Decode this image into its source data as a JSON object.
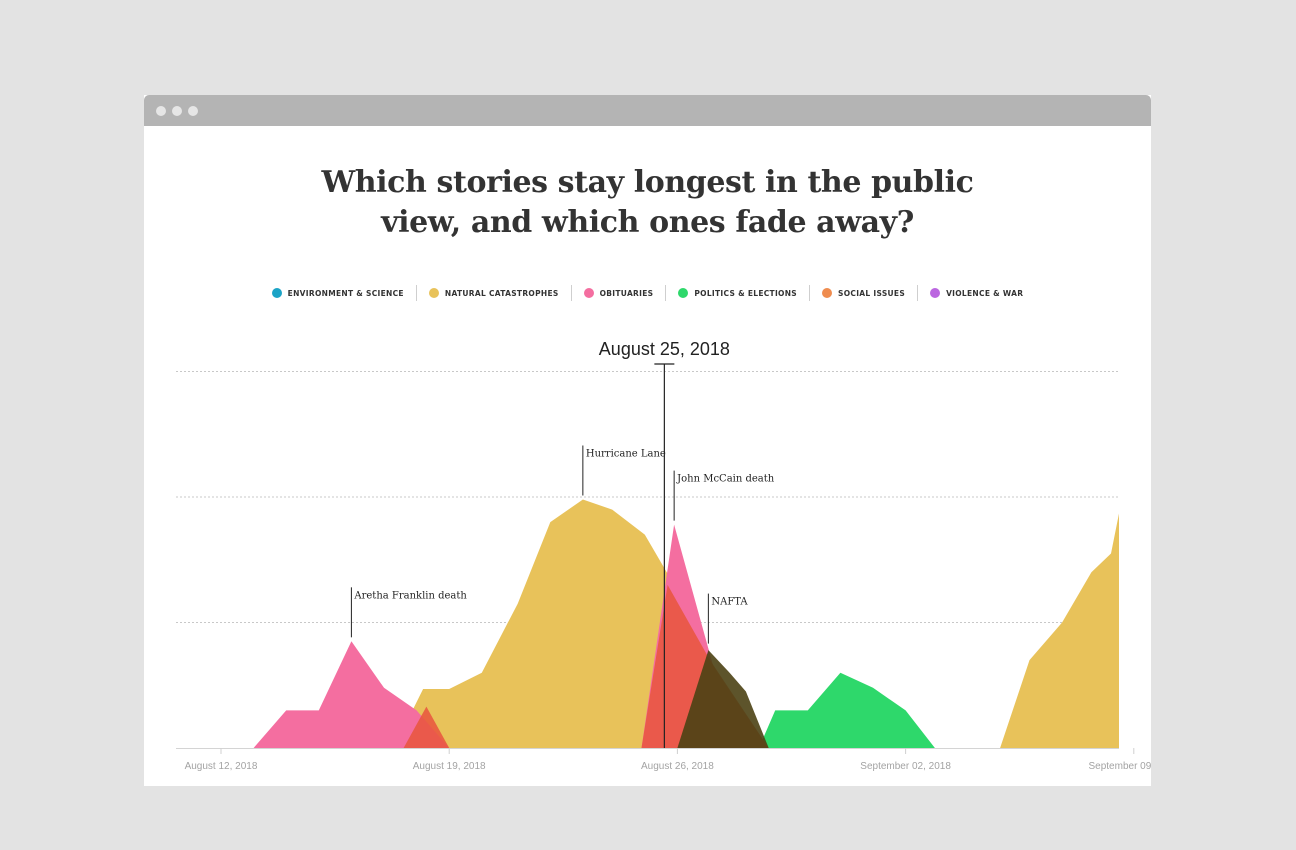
{
  "window": {
    "controls": [
      "close-dot",
      "minimize-dot",
      "maximize-dot"
    ]
  },
  "page": {
    "title_line1": "Which stories stay longest in the public",
    "title_line2": "view, and which ones fade away?"
  },
  "legend": [
    {
      "label": "ENVIRONMENT & SCIENCE",
      "color": "#1ba3c6"
    },
    {
      "label": "NATURAL CATASTROPHES",
      "color": "#e8c25a"
    },
    {
      "label": "OBITUARIES",
      "color": "#f46ea0"
    },
    {
      "label": "POLITICS & ELECTIONS",
      "color": "#2ed86b"
    },
    {
      "label": "SOCIAL ISSUES",
      "color": "#ef8c4f"
    },
    {
      "label": "VIOLENCE & WAR",
      "color": "#bb66e0"
    }
  ],
  "chart_data": {
    "type": "area",
    "cursor_date": "August 25, 2018",
    "x_ticks": [
      {
        "day": 0,
        "label": "August 12, 2018"
      },
      {
        "day": 7,
        "label": "August 19, 2018"
      },
      {
        "day": 14,
        "label": "August 26, 2018"
      },
      {
        "day": 21,
        "label": "September 02, 2018"
      },
      {
        "day": 28,
        "label": "September 09, 2018"
      }
    ],
    "x_range": [
      -1.3,
      27.6
    ],
    "cursor_day": 13.6,
    "ylim": [
      0,
      3
    ],
    "grid_values": [
      1,
      2,
      3
    ],
    "grid": true,
    "series": [
      {
        "color": "#e8c25a",
        "points": [
          [
            5.3,
            0
          ],
          [
            6.2,
            0.47
          ],
          [
            7,
            0.47
          ],
          [
            8,
            0.6
          ],
          [
            9.1,
            1.15
          ],
          [
            10.1,
            1.8
          ],
          [
            11.1,
            1.98
          ],
          [
            12,
            1.9
          ],
          [
            13,
            1.7
          ],
          [
            13.9,
            1.3
          ],
          [
            14.6,
            0.75
          ],
          [
            15.1,
            0.35
          ],
          [
            15.6,
            0
          ]
        ]
      },
      {
        "color": "#e8c25a",
        "points": [
          [
            23.9,
            0
          ],
          [
            24.8,
            0.7
          ],
          [
            25.8,
            1
          ],
          [
            26.7,
            1.4
          ],
          [
            27.3,
            1.55
          ],
          [
            27.8,
            2.2
          ],
          [
            28.2,
            2.35
          ],
          [
            28.2,
            0
          ]
        ]
      },
      {
        "color": "#2ed86b",
        "points": [
          [
            16.5,
            0
          ],
          [
            17,
            0.3
          ],
          [
            18,
            0.3
          ],
          [
            19,
            0.6
          ],
          [
            20,
            0.48
          ],
          [
            21,
            0.3
          ],
          [
            21.9,
            0
          ]
        ]
      },
      {
        "color": "#f46ea0",
        "points": [
          [
            1,
            0
          ],
          [
            2,
            0.3
          ],
          [
            3,
            0.3
          ],
          [
            4,
            0.85
          ],
          [
            5,
            0.48
          ],
          [
            6,
            0.3
          ],
          [
            7,
            0
          ]
        ]
      },
      {
        "color": "#f46ea0",
        "points": [
          [
            12.9,
            0
          ],
          [
            13.9,
            1.78
          ],
          [
            15.1,
            0.65
          ],
          [
            16,
            0.3
          ],
          [
            16.8,
            0
          ]
        ]
      },
      {
        "color": "#e8563f",
        "opacity": 0.88,
        "points": [
          [
            5.6,
            0
          ],
          [
            6.3,
            0.33
          ],
          [
            7,
            0
          ]
        ]
      },
      {
        "color": "#e8563f",
        "opacity": 0.88,
        "points": [
          [
            12.9,
            0
          ],
          [
            13.7,
            1.3
          ],
          [
            15,
            0.7
          ],
          [
            16.8,
            0
          ],
          [
            12.9,
            0
          ]
        ]
      },
      {
        "color": "#4b4114",
        "opacity": 0.9,
        "points": [
          [
            14,
            0
          ],
          [
            14.95,
            0.78
          ],
          [
            15.6,
            0.6
          ],
          [
            16.1,
            0.45
          ],
          [
            16.8,
            0
          ]
        ]
      }
    ],
    "annotations": [
      {
        "label": "Aretha Franklin death",
        "day": 4,
        "value": 0.85
      },
      {
        "label": "Hurricane Lane",
        "day": 11.1,
        "value": 1.98
      },
      {
        "label": "John McCain death",
        "day": 13.9,
        "value": 1.78
      },
      {
        "label": "NAFTA",
        "day": 14.95,
        "value": 0.8
      }
    ]
  }
}
